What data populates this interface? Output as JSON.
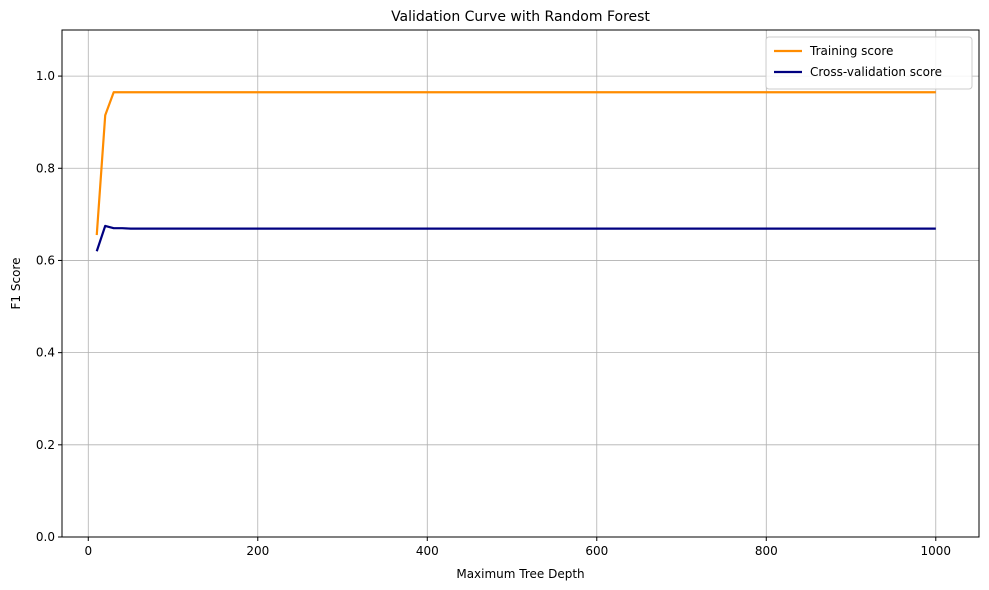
{
  "chart_data": {
    "type": "line",
    "title": "Validation Curve with Random Forest",
    "xlabel": "Maximum Tree Depth",
    "ylabel": "F1 Score",
    "xlim": [
      -31,
      1051
    ],
    "ylim": [
      0.0,
      1.1
    ],
    "xticks": [
      0,
      200,
      400,
      600,
      800,
      1000
    ],
    "yticks": [
      0.0,
      0.2,
      0.4,
      0.6,
      0.8,
      1.0
    ],
    "xtick_labels": [
      "0",
      "200",
      "400",
      "600",
      "800",
      "1000"
    ],
    "ytick_labels": [
      "0.0",
      "0.2",
      "0.4",
      "0.6",
      "0.8",
      "1.0"
    ],
    "grid": true,
    "legend_position": "top-right",
    "series": [
      {
        "name": "Training score",
        "color": "#ff8c00",
        "x": [
          10,
          20,
          30,
          40,
          50,
          60,
          70,
          80,
          90,
          100,
          1000
        ],
        "y": [
          0.655,
          0.915,
          0.965,
          0.965,
          0.965,
          0.965,
          0.965,
          0.965,
          0.965,
          0.965,
          0.965
        ]
      },
      {
        "name": "Cross-validation score",
        "color": "#000080",
        "x": [
          10,
          20,
          30,
          40,
          50,
          60,
          70,
          80,
          90,
          100,
          1000
        ],
        "y": [
          0.62,
          0.675,
          0.67,
          0.67,
          0.669,
          0.669,
          0.669,
          0.669,
          0.669,
          0.669,
          0.669
        ]
      }
    ]
  }
}
